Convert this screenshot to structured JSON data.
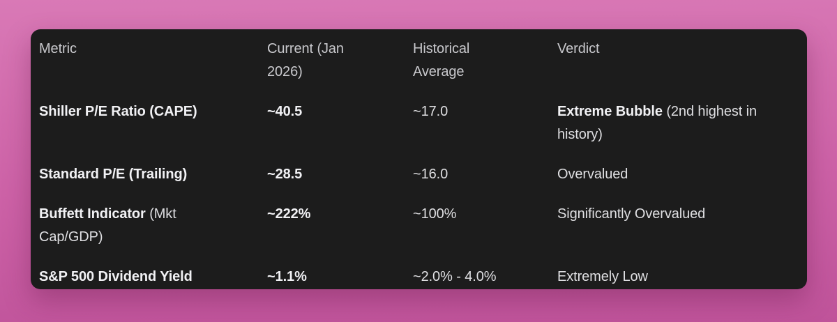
{
  "table": {
    "headers": [
      "Metric",
      "Current (Jan 2026)",
      "Historical Average",
      "Verdict"
    ],
    "rows": [
      {
        "metric_bold": "Shiller P/E Ratio (CAPE)",
        "metric_rest": "",
        "current": "~40.5",
        "historical": "~17.0",
        "verdict_bold": "Extreme Bubble",
        "verdict_rest": " (2nd highest in history)"
      },
      {
        "metric_bold": "Standard P/E (Trailing)",
        "metric_rest": "",
        "current": "~28.5",
        "historical": "~16.0",
        "verdict_bold": "",
        "verdict_rest": "Overvalued"
      },
      {
        "metric_bold": "Buffett Indicator",
        "metric_rest": " (Mkt Cap/GDP)",
        "current": "~222%",
        "historical": "~100%",
        "verdict_bold": "",
        "verdict_rest": "Significantly Overvalued"
      },
      {
        "metric_bold": "S&P 500 Dividend Yield",
        "metric_rest": "",
        "current": "~1.1%",
        "historical": "~2.0% - 4.0%",
        "verdict_bold": "",
        "verdict_rest": "Extremely Low"
      }
    ]
  },
  "colors": {
    "desktop_background_top": "#d979b6",
    "desktop_background_bottom": "#bf539a",
    "card_background": "#1c1c1c",
    "header_text": "#c9c9cd",
    "body_text": "#dfdfe2",
    "bold_text": "#f1f1f4"
  }
}
